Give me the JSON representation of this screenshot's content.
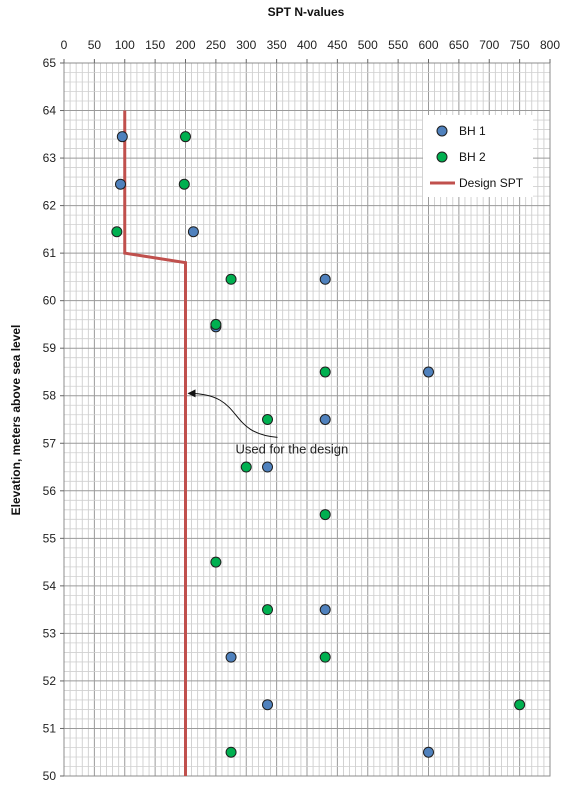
{
  "chart_data": {
    "type": "scatter",
    "title": "SPT N-values",
    "xlabel": "SPT N-values",
    "ylabel": "Elevation, meters above sea level",
    "xlim": [
      0,
      800
    ],
    "ylim": [
      50,
      65
    ],
    "x_axis_position": "top",
    "xticks": [
      0,
      50,
      100,
      150,
      200,
      250,
      300,
      350,
      400,
      450,
      500,
      550,
      600,
      650,
      700,
      750,
      800
    ],
    "yticks": [
      50,
      51,
      52,
      53,
      54,
      55,
      56,
      57,
      58,
      59,
      60,
      61,
      62,
      63,
      64,
      65
    ],
    "grid": true,
    "legend_position": "top-right",
    "series": [
      {
        "name": "BH 1",
        "kind": "markers",
        "color": "#4f81bd",
        "points": [
          {
            "x": 96,
            "y": 63.45
          },
          {
            "x": 93,
            "y": 62.45
          },
          {
            "x": 213,
            "y": 61.45
          },
          {
            "x": 430,
            "y": 60.45
          },
          {
            "x": 250,
            "y": 59.45
          },
          {
            "x": 600,
            "y": 58.5
          },
          {
            "x": 430,
            "y": 57.5
          },
          {
            "x": 335,
            "y": 56.5
          },
          {
            "x": 430,
            "y": 53.5
          },
          {
            "x": 275,
            "y": 52.5
          },
          {
            "x": 335,
            "y": 51.5
          },
          {
            "x": 600,
            "y": 50.5
          }
        ]
      },
      {
        "name": "BH 2",
        "kind": "markers",
        "color": "#00b050",
        "points": [
          {
            "x": 200,
            "y": 63.45
          },
          {
            "x": 198,
            "y": 62.45
          },
          {
            "x": 87,
            "y": 61.45
          },
          {
            "x": 275,
            "y": 60.45
          },
          {
            "x": 250,
            "y": 59.5
          },
          {
            "x": 430,
            "y": 58.5
          },
          {
            "x": 335,
            "y": 57.5
          },
          {
            "x": 300,
            "y": 56.5
          },
          {
            "x": 430,
            "y": 55.5
          },
          {
            "x": 250,
            "y": 54.5
          },
          {
            "x": 335,
            "y": 53.5
          },
          {
            "x": 430,
            "y": 52.5
          },
          {
            "x": 750,
            "y": 51.5
          },
          {
            "x": 275,
            "y": 50.5
          }
        ]
      },
      {
        "name": "Design SPT",
        "kind": "line",
        "color": "#c0504d",
        "points": [
          {
            "x": 100,
            "y": 64
          },
          {
            "x": 100,
            "y": 61
          },
          {
            "x": 200,
            "y": 60.8
          },
          {
            "x": 200,
            "y": 50
          }
        ]
      }
    ],
    "annotations": [
      {
        "text": "Used for the design",
        "arrow_to": {
          "x": 200,
          "y": 58.05
        }
      }
    ]
  }
}
